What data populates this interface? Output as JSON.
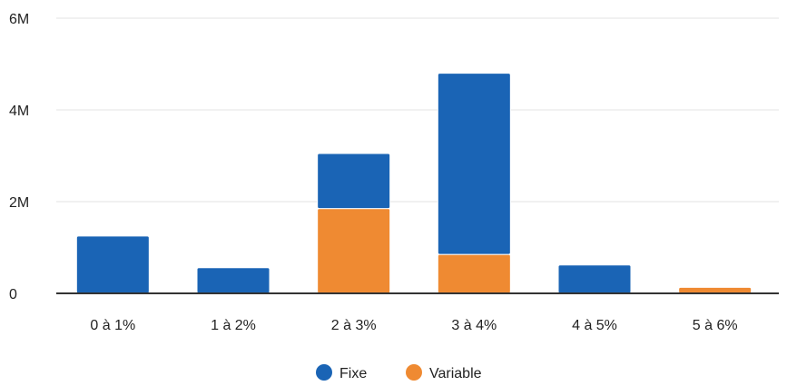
{
  "chart_data": {
    "type": "bar",
    "stacked": true,
    "categories": [
      "0 à 1%",
      "1 à 2%",
      "2 à 3%",
      "3 à 4%",
      "4 à 5%",
      "5 à 6%"
    ],
    "series": [
      {
        "name": "Variable",
        "color": "#ef8a32",
        "values": [
          0,
          0,
          1850000,
          850000,
          0,
          130000
        ]
      },
      {
        "name": "Fixe",
        "color": "#1a64b5",
        "values": [
          1250000,
          560000,
          1200000,
          3950000,
          620000,
          0
        ]
      }
    ],
    "y_ticks": [
      {
        "value": 0,
        "label": "0"
      },
      {
        "value": 2000000,
        "label": "2M"
      },
      {
        "value": 4000000,
        "label": "4M"
      },
      {
        "value": 6000000,
        "label": "6M"
      }
    ],
    "ylim": [
      0,
      6000000
    ],
    "grid": true,
    "legend_position": "bottom",
    "legend": [
      {
        "label": "Fixe",
        "color": "#1a64b5"
      },
      {
        "label": "Variable",
        "color": "#ef8a32"
      }
    ]
  }
}
